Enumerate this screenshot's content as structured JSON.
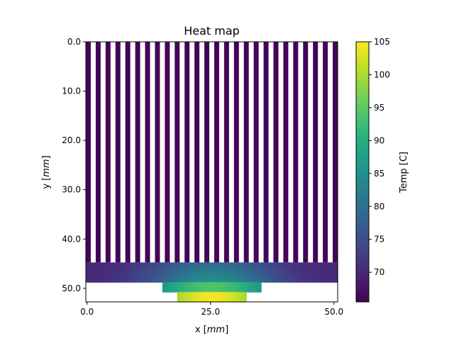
{
  "chart_data": {
    "type": "heatmap",
    "title": "Heat map",
    "xlabel_var": "x",
    "xlabel_unit": "mm",
    "ylabel_var": "y",
    "ylabel_unit": "mm",
    "xlim": [
      -0.25,
      50.75
    ],
    "ylim": [
      52.75,
      0
    ],
    "x_ticks": [
      0.0,
      25.0,
      50.0
    ],
    "x_tick_labels": [
      "0.0",
      "25.0",
      "50.0"
    ],
    "y_ticks": [
      0.0,
      10.0,
      20.0,
      30.0,
      40.0,
      50.0
    ],
    "y_tick_labels": [
      "0.0",
      "10.0",
      "20.0",
      "30.0",
      "40.0",
      "50.0"
    ],
    "colorbar": {
      "label": "Temp [C]",
      "min": 65.5,
      "max": 105,
      "ticks": [
        70,
        75,
        80,
        85,
        90,
        95,
        100,
        105
      ],
      "tick_labels": [
        "70",
        "75",
        "80",
        "85",
        "90",
        "95",
        "100",
        "105"
      ],
      "colormap": "viridis"
    },
    "geometry": {
      "fins": {
        "count": 26,
        "x_start": -0.25,
        "pitch": 2.0,
        "fin_width": 1.0,
        "y_top": 0.0,
        "y_bottom": 44.75
      },
      "base": {
        "x_min": -0.25,
        "x_max": 50.75,
        "y_min": 44.75,
        "y_max": 48.75
      },
      "pedestal": {
        "x_min": 15.25,
        "x_max": 35.25,
        "y_min": 48.75,
        "y_max": 50.75
      },
      "source": {
        "x_min": 18.25,
        "x_max": 32.25,
        "y_min": 50.75,
        "y_max": 52.75
      }
    },
    "temperature_model": {
      "center_x": 25.25,
      "fin_temp": 65.8,
      "source_peak": 104.5
    }
  }
}
